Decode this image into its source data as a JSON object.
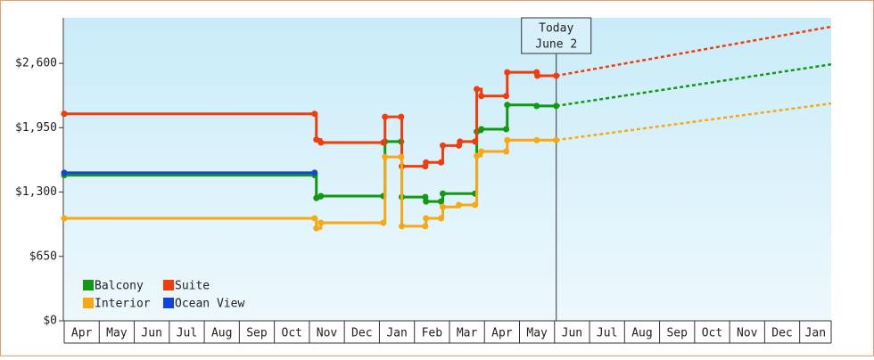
{
  "chart_data": {
    "type": "line",
    "step": true,
    "categories": [
      "Apr",
      "May",
      "Jun",
      "Jul",
      "Aug",
      "Sep",
      "Oct",
      "Nov",
      "Dec",
      "Jan",
      "Feb",
      "Mar",
      "Apr",
      "May",
      "Jun",
      "Jul",
      "Aug",
      "Sep",
      "Oct",
      "Nov",
      "Dec",
      "Jan"
    ],
    "xlim": [
      0,
      21.9
    ],
    "ylim": [
      0,
      3060
    ],
    "yticks": [
      {
        "value": 0,
        "label": "$0"
      },
      {
        "value": 650,
        "label": "$650"
      },
      {
        "value": 1300,
        "label": "$1,300"
      },
      {
        "value": 1950,
        "label": "$1,950"
      },
      {
        "value": 2600,
        "label": "$2,600"
      }
    ],
    "annotation": {
      "x": 14.05,
      "lines": [
        "Today",
        "June 2"
      ]
    },
    "legend": "lower left",
    "series": [
      {
        "name": "Balcony",
        "color": "#119911",
        "x": [
          0,
          7.15,
          7.2,
          7.33,
          9.11,
          9.16,
          9.62,
          9.64,
          10.31,
          10.33,
          10.76,
          10.81,
          11.73,
          11.78,
          11.91,
          12.62,
          12.65,
          13.49,
          14.05
        ],
        "values": [
          1470,
          1470,
          1240,
          1260,
          1260,
          1810,
          1810,
          1250,
          1250,
          1205,
          1205,
          1285,
          1285,
          1910,
          1935,
          1935,
          2180,
          2170,
          2170
        ],
        "forecast": {
          "x": [
            14.05,
            21.9
          ],
          "values": [
            2170,
            2590
          ]
        }
      },
      {
        "name": "Suite",
        "color": "#f23c0c",
        "x": [
          0,
          7.15,
          7.2,
          7.33,
          9.11,
          9.16,
          9.62,
          9.64,
          10.31,
          10.33,
          10.76,
          10.81,
          11.27,
          11.3,
          11.73,
          11.78,
          11.91,
          12.62,
          12.65,
          13.49,
          13.51,
          14.05
        ],
        "values": [
          2090,
          2090,
          1830,
          1800,
          1800,
          2060,
          2060,
          1560,
          1560,
          1600,
          1600,
          1770,
          1770,
          1810,
          1810,
          2340,
          2270,
          2270,
          2510,
          2510,
          2475,
          2475
        ],
        "forecast": {
          "x": [
            14.05,
            21.9
          ],
          "values": [
            2475,
            2970
          ]
        }
      },
      {
        "name": "Interior",
        "color": "#f7a812",
        "x": [
          0,
          7.15,
          7.2,
          7.33,
          9.11,
          9.16,
          9.62,
          9.64,
          10.31,
          10.33,
          10.76,
          10.81,
          11.27,
          11.73,
          11.78,
          11.91,
          12.62,
          12.65,
          13.49,
          14.05
        ],
        "values": [
          1035,
          1035,
          935,
          990,
          990,
          1655,
          1655,
          955,
          955,
          1035,
          1035,
          1150,
          1170,
          1170,
          1665,
          1710,
          1710,
          1825,
          1825,
          1825
        ],
        "forecast": {
          "x": [
            14.05,
            21.9
          ],
          "values": [
            1825,
            2195
          ]
        }
      },
      {
        "name": "Ocean View",
        "color": "#1244dd",
        "x": [
          0,
          7.15
        ],
        "values": [
          1495,
          1495
        ]
      }
    ]
  }
}
